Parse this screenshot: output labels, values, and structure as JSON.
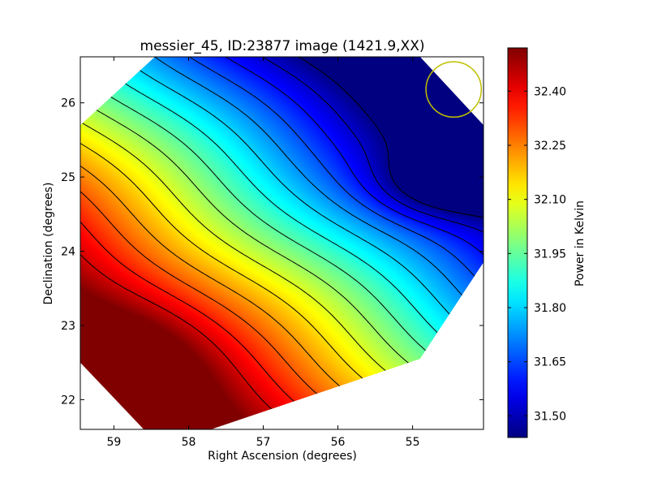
{
  "chart_data": {
    "type": "heatmap",
    "title": "messier_45, ID:23877 image (1421.9,XX)",
    "xlabel": "Right Ascension (degrees)",
    "ylabel": "Declination (degrees)",
    "xlim": [
      59.45,
      54.05
    ],
    "ylim": [
      21.6,
      26.62
    ],
    "x_ticks": [
      {
        "value": 59,
        "label": "59"
      },
      {
        "value": 58,
        "label": "58"
      },
      {
        "value": 57,
        "label": "57"
      },
      {
        "value": 56,
        "label": "56"
      },
      {
        "value": 55,
        "label": "55"
      }
    ],
    "y_ticks": [
      {
        "value": 22,
        "label": "22"
      },
      {
        "value": 23,
        "label": "23"
      },
      {
        "value": 24,
        "label": "24"
      },
      {
        "value": 25,
        "label": "25"
      },
      {
        "value": 26,
        "label": "26"
      }
    ],
    "colorbar": {
      "label": "Power in Kelvin",
      "range": [
        31.44,
        32.52
      ],
      "ticks": [
        {
          "value": 31.5,
          "label": "31.50"
        },
        {
          "value": 31.65,
          "label": "31.65"
        },
        {
          "value": 31.8,
          "label": "31.80"
        },
        {
          "value": 31.95,
          "label": "31.95"
        },
        {
          "value": 32.1,
          "label": "32.10"
        },
        {
          "value": 32.25,
          "label": "32.25"
        },
        {
          "value": 32.4,
          "label": "32.40"
        }
      ],
      "colormap": "jet"
    },
    "field_model": {
      "base": 31.98,
      "gradient_ra": 0.16,
      "gradient_dec": -0.2,
      "center_ra": 56.75,
      "center_dec": 24.1,
      "minimum_ra": 54.6,
      "minimum_dec": 24.9,
      "minimum_depth": 0.18,
      "maximum_ra": 58.8,
      "maximum_dec": 22.3,
      "maximum_height": 0.1
    },
    "contour_levels": [
      31.45,
      31.52,
      31.59,
      31.66,
      31.73,
      31.8,
      31.87,
      31.94,
      32.01,
      32.08,
      32.15,
      32.22,
      32.29,
      32.36,
      32.43
    ],
    "beam_circle": {
      "ra": 54.45,
      "dec": 26.18,
      "radius_deg": 0.37,
      "color": "#bfbf00"
    },
    "coverage_polygon": [
      [
        58.45,
        26.62
      ],
      [
        54.9,
        26.62
      ],
      [
        54.05,
        25.7
      ],
      [
        54.05,
        23.85
      ],
      [
        54.9,
        22.55
      ],
      [
        57.7,
        21.6
      ],
      [
        58.6,
        21.6
      ],
      [
        59.45,
        22.5
      ],
      [
        59.45,
        25.7
      ]
    ]
  }
}
